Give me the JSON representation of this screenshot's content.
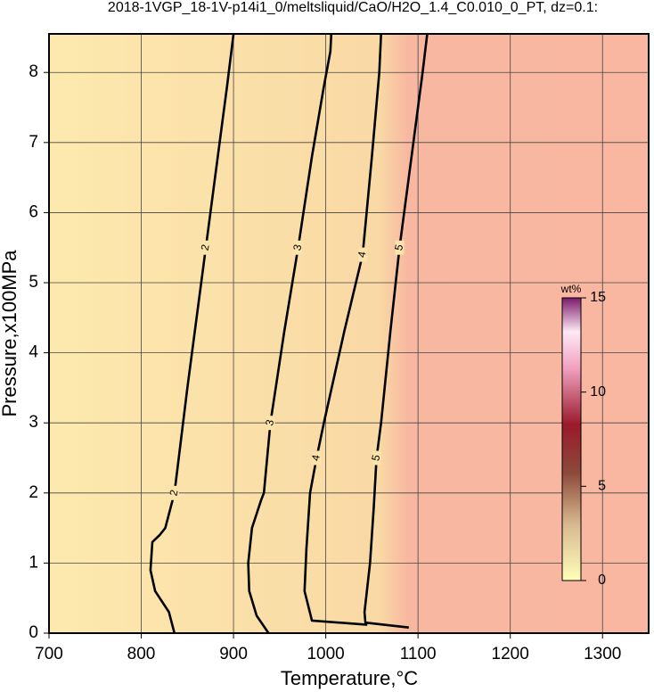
{
  "chart_data": {
    "type": "contour",
    "title": "2018-1VGP_18-1V-p14i1_0/meltsliquid/CaO/H2O_1.4_C0.010_0_PT, dz=0.1:",
    "x_label": "Temperature,°C",
    "y_label": "Pressure,x100MPa",
    "xlim": [
      700,
      1350
    ],
    "xticks": [
      700,
      800,
      900,
      1000,
      1100,
      1200,
      1300
    ],
    "ylim": [
      0,
      8.55
    ],
    "yticks": [
      0,
      1,
      2,
      3,
      4,
      5,
      6,
      7,
      8
    ],
    "grid": true,
    "series": [
      {
        "name": "2",
        "color": "#000000",
        "x": [
          836,
          830,
          815,
          810,
          812,
          820,
          826,
          836,
          850,
          870,
          885,
          893,
          900
        ],
        "y": [
          0,
          0.3,
          0.6,
          0.9,
          1.3,
          1.4,
          1.5,
          2.0,
          3.5,
          5.5,
          7.0,
          7.8,
          8.55
        ]
      },
      {
        "name": "3",
        "color": "#000000",
        "x": [
          938,
          925,
          917,
          916,
          920,
          930,
          933,
          940,
          955,
          970,
          985,
          998,
          1005,
          1006
        ],
        "y": [
          0,
          0.25,
          0.6,
          1.0,
          1.5,
          1.9,
          2.0,
          3.0,
          4.3,
          5.5,
          6.8,
          7.8,
          8.3,
          8.55
        ]
      },
      {
        "name": "4",
        "color": "#000000",
        "x": [
          1045,
          985,
          977,
          979,
          983,
          990,
          998,
          1020,
          1040,
          1050,
          1058,
          1060
        ],
        "y": [
          0.12,
          0.18,
          0.6,
          1.2,
          2.0,
          2.5,
          3.0,
          4.3,
          5.4,
          6.8,
          8.0,
          8.55
        ]
      },
      {
        "name": "5",
        "color": "#000000",
        "x": [
          1090,
          1043,
          1042,
          1048,
          1052,
          1055,
          1060,
          1070,
          1080,
          1093,
          1105,
          1110
        ],
        "y": [
          0.08,
          0.15,
          0.3,
          1.0,
          1.8,
          2.5,
          3.0,
          4.3,
          5.5,
          6.8,
          8.0,
          8.55
        ]
      }
    ],
    "colorbar": {
      "label": "wt%",
      "lim": [
        0,
        15
      ],
      "ticks": [
        0,
        5,
        10,
        15
      ]
    }
  }
}
